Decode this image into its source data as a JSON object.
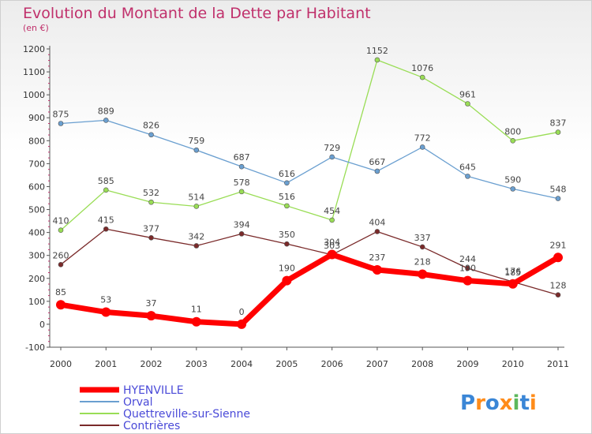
{
  "title": "Evolution du Montant de la Dette par Habitant",
  "subtitle": "(en €)",
  "logo": "Proxiti",
  "chart_data": {
    "type": "line",
    "title": "Evolution du Montant de la Dette par Habitant",
    "subtitle": "(en €)",
    "xlabel": "",
    "ylabel": "",
    "x": [
      "2000",
      "2001",
      "2002",
      "2003",
      "2004",
      "2005",
      "2006",
      "2007",
      "2008",
      "2009",
      "2010",
      "2011"
    ],
    "ylim": [
      -100,
      1200
    ],
    "yticks": [
      -100,
      0,
      100,
      200,
      300,
      400,
      500,
      600,
      700,
      800,
      900,
      1000,
      1100,
      1200
    ],
    "grid": false,
    "legend": "bottom-left",
    "series": [
      {
        "name": "HYENVILLE",
        "color": "#ff0000",
        "values": [
          85,
          53,
          37,
          11,
          0,
          190,
          304,
          237,
          218,
          190,
          176,
          291
        ]
      },
      {
        "name": "Orval",
        "color": "#6a9fd0",
        "values": [
          875,
          889,
          826,
          759,
          687,
          616,
          729,
          667,
          772,
          645,
          590,
          548
        ]
      },
      {
        "name": "Quettreville-sur-Sienne",
        "color": "#99dd55",
        "values": [
          410,
          585,
          532,
          514,
          578,
          516,
          454,
          1152,
          1076,
          961,
          800,
          837
        ]
      },
      {
        "name": "Contrières",
        "color": "#7a2a2a",
        "values": [
          260,
          415,
          377,
          342,
          394,
          350,
          303,
          404,
          337,
          244,
          185,
          128
        ]
      }
    ]
  }
}
